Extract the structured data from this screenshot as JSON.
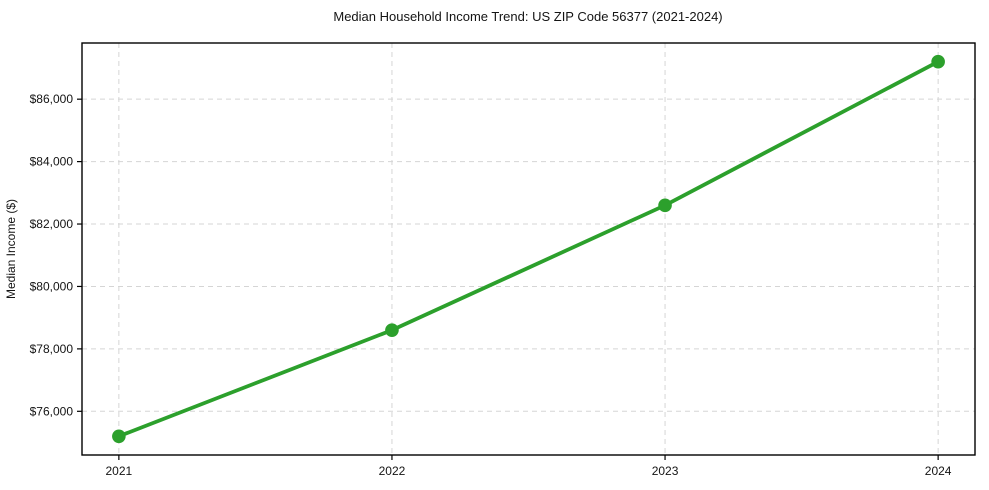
{
  "chart_data": {
    "type": "line",
    "title": "Median Household Income Trend: US ZIP Code 56377 (2021-2024)",
    "xlabel": "",
    "ylabel": "Median Income ($)",
    "categories": [
      "2021",
      "2022",
      "2023",
      "2024"
    ],
    "series": [
      {
        "name": "Median Household Income",
        "values": [
          75200,
          78600,
          82600,
          87200
        ]
      }
    ],
    "ylim": [
      74600,
      87800
    ],
    "yticks": [
      76000,
      78000,
      80000,
      82000,
      84000,
      86000
    ],
    "ytick_labels": [
      "$76,000",
      "$78,000",
      "$80,000",
      "$82,000",
      "$84,000",
      "$86,000"
    ],
    "xtick_labels": [
      "2021",
      "2022",
      "2023",
      "2024"
    ],
    "grid": true,
    "grid_style": "dashed",
    "legend_position": "none",
    "marker": "circle",
    "colors": {
      "line": "#2ca02c",
      "marker": "#2ca02c",
      "grid": "#d5d5d5",
      "axis_border": "#000000",
      "text": "#141414",
      "background": "#ffffff"
    }
  }
}
